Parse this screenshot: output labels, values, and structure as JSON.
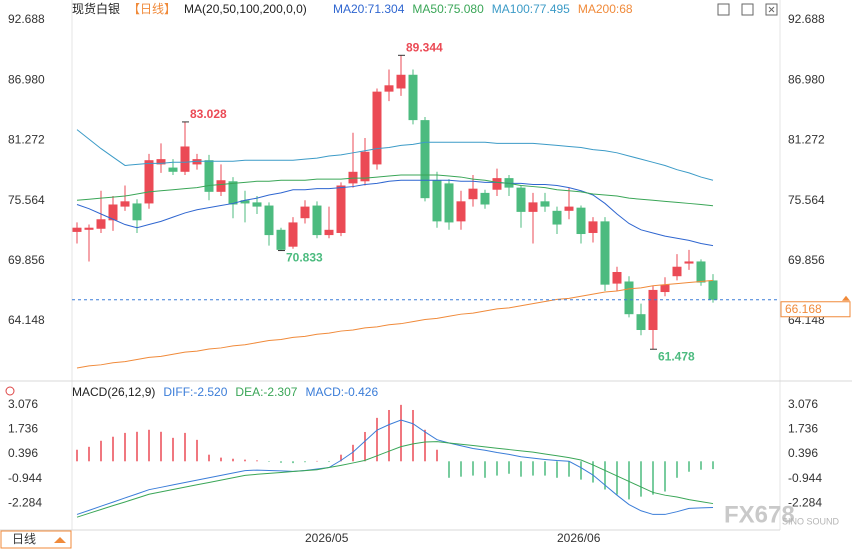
{
  "chart_data": [
    {
      "type": "candlestick",
      "title": "现货白银",
      "period_tag": "【日线】",
      "indicator_label": "MA(20,50,100,200,0,0)",
      "categories": [
        null,
        null,
        null,
        null,
        null,
        null,
        null,
        null,
        null,
        null,
        null,
        null,
        null,
        null,
        null,
        null,
        null,
        null,
        null,
        "2026/05",
        null,
        null,
        null,
        null,
        null,
        null,
        null,
        null,
        null,
        null,
        null,
        null,
        null,
        null,
        null,
        null,
        null,
        null,
        null,
        null,
        "2026/06",
        null,
        null,
        null,
        null,
        null,
        null,
        null,
        null,
        null,
        null,
        null,
        null,
        null
      ],
      "open": [
        72.6,
        72.8,
        72.9,
        73.7,
        75.0,
        75.3,
        75.3,
        79.0,
        78.7,
        78.3,
        79.0,
        79.4,
        76.4,
        77.4,
        75.6,
        75.4,
        75.1,
        72.8,
        71.2,
        73.9,
        75.1,
        72.3,
        72.5,
        77.2,
        77.4,
        79.0,
        85.9,
        86.2,
        87.5,
        83.2,
        77.5,
        77.2,
        73.6,
        75.7,
        76.3,
        76.6,
        77.7,
        76.8,
        74.5,
        75.5,
        74.6,
        74.6,
        74.9,
        72.5,
        73.6,
        67.7,
        67.9,
        64.8,
        63.3,
        66.9,
        68.4,
        69.6,
        69.8,
        68.0
      ],
      "high": [
        73.5,
        73.3,
        76.5,
        76.0,
        77.0,
        75.7,
        80.0,
        81.0,
        79.5,
        83.028,
        80.0,
        79.9,
        79.0,
        77.8,
        76.5,
        76.0,
        75.4,
        73.0,
        74.0,
        75.6,
        75.5,
        75.0,
        77.3,
        82.0,
        81.5,
        86.2,
        88.0,
        89.344,
        88.0,
        83.5,
        78.3,
        77.6,
        76.5,
        78.0,
        76.6,
        78.6,
        78.0,
        77.0,
        76.3,
        76.3,
        75.0,
        76.8,
        75.1,
        74.0,
        74.0,
        69.3,
        68.4,
        65.8,
        67.5,
        68.3,
        70.5,
        70.9,
        70.0,
        68.6
      ],
      "low": [
        71.5,
        69.8,
        72.5,
        72.7,
        74.6,
        72.5,
        74.8,
        78.2,
        78.0,
        78.0,
        78.5,
        75.6,
        76.0,
        73.9,
        73.5,
        74.3,
        71.3,
        70.833,
        71.0,
        73.4,
        72.0,
        72.0,
        72.2,
        76.8,
        77.0,
        78.5,
        85.0,
        85.5,
        82.8,
        75.5,
        73.0,
        72.8,
        72.8,
        75.0,
        74.8,
        76.0,
        76.0,
        73.0,
        71.5,
        74.5,
        72.4,
        73.8,
        71.5,
        71.6,
        67.0,
        67.0,
        64.5,
        62.8,
        61.478,
        66.5,
        68.0,
        69.0,
        67.5,
        65.9
      ],
      "close": [
        73.0,
        73.0,
        73.8,
        75.2,
        75.5,
        73.7,
        79.4,
        79.5,
        78.3,
        80.7,
        79.5,
        76.4,
        77.5,
        75.2,
        75.3,
        75.0,
        72.3,
        70.9,
        73.5,
        75.0,
        72.3,
        72.8,
        77.0,
        78.3,
        80.2,
        85.9,
        86.5,
        87.5,
        83.2,
        75.8,
        73.6,
        73.5,
        75.5,
        76.7,
        75.2,
        77.7,
        76.8,
        74.5,
        75.4,
        75.0,
        73.3,
        75.0,
        72.4,
        73.6,
        67.6,
        68.8,
        64.8,
        63.3,
        67.1,
        67.6,
        69.3,
        69.8,
        67.8,
        66.168
      ],
      "up_color": "#eb4a55",
      "down_color": "#4cbb7f",
      "series": [
        {
          "name": "MA20:71.304",
          "color": "#2f66d0",
          "values": [
            75.2,
            74.8,
            74.3,
            73.8,
            73.3,
            73.0,
            73.3,
            73.6,
            74.0,
            74.4,
            74.7,
            74.9,
            75.1,
            75.3,
            75.6,
            75.8,
            76.1,
            76.3,
            76.6,
            76.6,
            76.7,
            76.7,
            76.8,
            76.9,
            77.1,
            77.2,
            77.4,
            77.5,
            77.5,
            77.5,
            77.5,
            77.5,
            77.4,
            77.4,
            77.3,
            77.3,
            77.2,
            77.2,
            77.1,
            77.1,
            77.0,
            76.8,
            76.5,
            76.1,
            75.3,
            74.3,
            73.4,
            72.8,
            72.5,
            72.2,
            72.0,
            71.8,
            71.5,
            71.304
          ]
        },
        {
          "name": "MA50:75.080",
          "color": "#3aa657",
          "values": [
            75.6,
            75.7,
            75.8,
            75.9,
            76.0,
            76.2,
            76.4,
            76.5,
            76.6,
            76.7,
            76.8,
            77.0,
            77.1,
            77.2,
            77.3,
            77.4,
            77.4,
            77.5,
            77.5,
            77.5,
            77.6,
            77.6,
            77.6,
            77.7,
            77.7,
            77.8,
            77.9,
            78.0,
            78.0,
            78.0,
            78.0,
            77.9,
            77.8,
            77.6,
            77.5,
            77.3,
            77.2,
            77.0,
            76.9,
            76.8,
            76.6,
            76.5,
            76.4,
            76.2,
            76.1,
            76.0,
            75.8,
            75.7,
            75.6,
            75.5,
            75.4,
            75.3,
            75.2,
            75.08
          ]
        },
        {
          "name": "MA100:77.495",
          "color": "#3c9bc7",
          "values": [
            82.3,
            81.4,
            80.5,
            79.7,
            78.9,
            79.0,
            79.1,
            79.1,
            79.2,
            79.2,
            79.3,
            79.3,
            79.3,
            79.3,
            79.4,
            79.4,
            79.4,
            79.4,
            79.4,
            79.5,
            79.6,
            79.8,
            79.9,
            80.1,
            80.3,
            80.5,
            80.6,
            80.8,
            80.9,
            81.1,
            81.1,
            81.1,
            81.1,
            81.1,
            81.1,
            81.0,
            81.0,
            81.0,
            81.0,
            80.9,
            80.8,
            80.7,
            80.6,
            80.4,
            80.3,
            80.1,
            79.8,
            79.5,
            79.2,
            78.9,
            78.5,
            78.2,
            77.8,
            77.495
          ]
        },
        {
          "name": "MA200:68",
          "color": "#f08a3a",
          "values": [
            59.7,
            59.9,
            60.0,
            60.2,
            60.3,
            60.5,
            60.7,
            60.8,
            61.0,
            61.2,
            61.3,
            61.5,
            61.6,
            61.8,
            61.9,
            62.1,
            62.3,
            62.4,
            62.6,
            62.7,
            62.9,
            63.0,
            63.2,
            63.3,
            63.5,
            63.6,
            63.8,
            63.9,
            64.1,
            64.3,
            64.4,
            64.6,
            64.8,
            64.9,
            65.1,
            65.3,
            65.4,
            65.6,
            65.8,
            66.0,
            66.2,
            66.3,
            66.5,
            66.7,
            66.9,
            67.0,
            67.2,
            67.3,
            67.5,
            67.6,
            67.7,
            67.8,
            67.9,
            68.0
          ]
        }
      ],
      "annotations": [
        83.028,
        89.344,
        70.833,
        61.478
      ],
      "last_price": 66.168,
      "last_price_color": "#f08a3a",
      "last_line_color": "#3b7dd8",
      "ylim": [
        58.75,
        93.45
      ],
      "yticks": [
        92.688,
        {
          "value": 86.98,
          "label": "86.980"
        },
        81.272,
        75.564,
        69.856,
        64.148
      ],
      "grid": false
    },
    {
      "type": "macd",
      "title": "MACD(26,12,9)",
      "series": [
        {
          "name": "DIFF:-2.520",
          "color": "#3b7dd8",
          "type": "line",
          "values": [
            -2.9,
            -2.68,
            -2.45,
            -2.23,
            -2.0,
            -1.78,
            -1.55,
            -1.42,
            -1.29,
            -1.16,
            -1.03,
            -0.9,
            -0.77,
            -0.64,
            -0.51,
            -0.48,
            -0.5,
            -0.52,
            -0.55,
            -0.5,
            -0.42,
            -0.34,
            0.05,
            0.5,
            1.1,
            1.7,
            2.0,
            2.25,
            2.05,
            1.6,
            1.18,
            1.0,
            0.85,
            0.7,
            0.6,
            0.48,
            0.38,
            0.25,
            0.17,
            0.1,
            0.04,
            0,
            -0.35,
            -0.75,
            -1.3,
            -1.85,
            -2.36,
            -2.7,
            -2.9,
            -2.9,
            -2.75,
            -2.57,
            -2.54,
            -2.52
          ]
        },
        {
          "name": "DEA:-2.307",
          "color": "#3aa657",
          "type": "line",
          "values": [
            -3.05,
            -2.84,
            -2.63,
            -2.42,
            -2.22,
            -2.01,
            -1.8,
            -1.67,
            -1.54,
            -1.41,
            -1.28,
            -1.16,
            -1.03,
            -0.9,
            -0.77,
            -0.71,
            -0.66,
            -0.61,
            -0.56,
            -0.51,
            -0.46,
            -0.34,
            -0.22,
            -0.09,
            0.05,
            0.3,
            0.55,
            0.8,
            0.95,
            1.05,
            1.07,
            1.0,
            0.93,
            0.86,
            0.79,
            0.71,
            0.64,
            0.57,
            0.5,
            0.4,
            0.3,
            0.2,
            0.07,
            -0.2,
            -0.5,
            -0.8,
            -1.1,
            -1.4,
            -1.7,
            -1.85,
            -1.95,
            -2.09,
            -2.2,
            -2.307
          ]
        },
        {
          "name": "MACD:-0.426",
          "color": "#3b7dd8",
          "type": "bar",
          "values": [
            0.63,
            0.79,
            1.12,
            1.34,
            1.55,
            1.61,
            1.72,
            1.61,
            1.28,
            1.55,
            1.17,
            0.36,
            0.2,
            0.14,
            0.09,
            0.05,
            -0.03,
            -0.08,
            -0.1,
            -0.05,
            0.02,
            -0.04,
            0.36,
            0.9,
            1.6,
            2.37,
            2.8,
            3.08,
            2.8,
            1.72,
            0.63,
            -0.9,
            -0.84,
            -0.78,
            -0.9,
            -0.78,
            -0.68,
            -0.84,
            -0.78,
            -0.78,
            -0.9,
            -0.84,
            -1.0,
            -1.16,
            -1.54,
            -1.82,
            -2.08,
            -1.93,
            -1.82,
            -1.65,
            -0.9,
            -0.57,
            -0.46,
            -0.426
          ]
        }
      ],
      "up_color": "#eb4a55",
      "down_color": "#4cbb7f",
      "ylim": [
        -3.75,
        4.0
      ],
      "yticks": [
        3.076,
        1.736,
        0.396,
        -0.944,
        -2.284
      ],
      "grid": false
    }
  ],
  "period_button": "日线",
  "watermark": [
    "FX678",
    "SINO SOUND"
  ]
}
